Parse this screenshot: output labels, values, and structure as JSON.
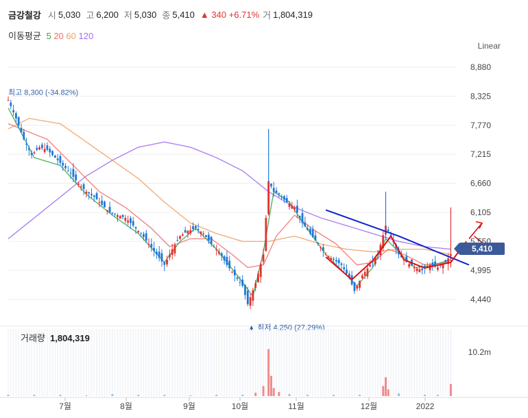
{
  "stock": {
    "name": "금강철강",
    "open_label": "시",
    "open": "5,030",
    "high_label": "고",
    "high": "6,200",
    "low_label": "저",
    "low": "5,030",
    "close_label": "종",
    "close": "5,410",
    "change": "▲ 340 +6.71%",
    "volume_label": "거",
    "volume": "1,804,319"
  },
  "ma_legend": {
    "label": "이동평균",
    "periods": [
      "5",
      "20",
      "60",
      "120"
    ],
    "colors": [
      "#3aa64c",
      "#f07070",
      "#f0a060",
      "#a06cf0"
    ]
  },
  "scale_mode": "Linear",
  "annotations": {
    "max_label": "최고 8,300 (-34.82%)",
    "min_label": "▲ 최저 4,250 (27.29%)",
    "current_price_tag": "5,410"
  },
  "volume_panel": {
    "title": "거래량",
    "value": "1,804,319",
    "axis_label": "10.2m"
  },
  "chart_data": {
    "type": "candlestick",
    "y_ticks": [
      "8,880",
      "8,325",
      "7,770",
      "7,215",
      "6,660",
      "6,105",
      "5,550",
      "4,995",
      "4,440"
    ],
    "ylim": [
      4440,
      8880
    ],
    "x_ticks": [
      "7월",
      "8월",
      "9월",
      "10월",
      "11월",
      "12월",
      "2022"
    ],
    "price_path": [
      [
        0,
        8250
      ],
      [
        3,
        7900
      ],
      [
        6,
        7500
      ],
      [
        9,
        7200
      ],
      [
        12,
        7350
      ],
      [
        15,
        7300
      ],
      [
        18,
        7150
      ],
      [
        21,
        7000
      ],
      [
        24,
        6850
      ],
      [
        27,
        6650
      ],
      [
        30,
        6500
      ],
      [
        33,
        6400
      ],
      [
        36,
        6250
      ],
      [
        39,
        6100
      ],
      [
        42,
        6050
      ],
      [
        45,
        6000
      ],
      [
        48,
        5850
      ],
      [
        51,
        5700
      ],
      [
        54,
        5500
      ],
      [
        57,
        5300
      ],
      [
        60,
        5100
      ],
      [
        63,
        5400
      ],
      [
        66,
        5650
      ],
      [
        69,
        5750
      ],
      [
        72,
        5800
      ],
      [
        75,
        5700
      ],
      [
        78,
        5500
      ],
      [
        81,
        5350
      ],
      [
        84,
        5100
      ],
      [
        87,
        4900
      ],
      [
        90,
        4700
      ],
      [
        92,
        4350
      ],
      [
        95,
        4750
      ],
      [
        98,
        5300
      ],
      [
        100,
        6700
      ],
      [
        102,
        6500
      ],
      [
        104,
        6450
      ],
      [
        107,
        6300
      ],
      [
        110,
        6200
      ],
      [
        113,
        5900
      ],
      [
        116,
        5700
      ],
      [
        119,
        5500
      ],
      [
        122,
        5300
      ],
      [
        125,
        5200
      ],
      [
        128,
        5100
      ],
      [
        131,
        4850
      ],
      [
        133,
        4600
      ],
      [
        136,
        4900
      ],
      [
        139,
        5100
      ],
      [
        142,
        5300
      ],
      [
        145,
        5850
      ],
      [
        147,
        5650
      ],
      [
        150,
        5300
      ],
      [
        153,
        5150
      ],
      [
        156,
        5050
      ],
      [
        159,
        5000
      ],
      [
        162,
        5100
      ],
      [
        165,
        5050
      ],
      [
        168,
        5150
      ],
      [
        170,
        5300
      ]
    ],
    "spikes": [
      {
        "x": 100,
        "high": 7700,
        "low": 6700
      },
      {
        "x": 145,
        "high": 6500,
        "low": 5600
      },
      {
        "x": 170,
        "high": 6200,
        "low": 5050
      }
    ],
    "ma5": [
      [
        0,
        8100
      ],
      [
        10,
        7150
      ],
      [
        20,
        7000
      ],
      [
        30,
        6450
      ],
      [
        40,
        6050
      ],
      [
        50,
        5700
      ],
      [
        60,
        5150
      ],
      [
        66,
        5550
      ],
      [
        72,
        5800
      ],
      [
        80,
        5400
      ],
      [
        88,
        4900
      ],
      [
        94,
        4500
      ],
      [
        98,
        5350
      ],
      [
        102,
        6500
      ],
      [
        108,
        6300
      ],
      [
        114,
        5850
      ],
      [
        122,
        5300
      ],
      [
        130,
        4900
      ],
      [
        134,
        4700
      ],
      [
        140,
        5050
      ],
      [
        145,
        5600
      ],
      [
        150,
        5350
      ],
      [
        156,
        5050
      ],
      [
        162,
        5080
      ],
      [
        170,
        5200
      ]
    ],
    "ma20": [
      [
        0,
        7800
      ],
      [
        15,
        7500
      ],
      [
        25,
        7000
      ],
      [
        35,
        6500
      ],
      [
        45,
        6200
      ],
      [
        55,
        5800
      ],
      [
        62,
        5450
      ],
      [
        70,
        5600
      ],
      [
        78,
        5600
      ],
      [
        86,
        5300
      ],
      [
        92,
        5050
      ],
      [
        98,
        5100
      ],
      [
        103,
        5650
      ],
      [
        110,
        6050
      ],
      [
        118,
        5750
      ],
      [
        126,
        5500
      ],
      [
        134,
        5100
      ],
      [
        140,
        5150
      ],
      [
        146,
        5400
      ],
      [
        152,
        5300
      ],
      [
        160,
        5100
      ],
      [
        170,
        5150
      ]
    ],
    "ma60": [
      [
        0,
        7700
      ],
      [
        8,
        7900
      ],
      [
        20,
        7800
      ],
      [
        30,
        7450
      ],
      [
        40,
        7100
      ],
      [
        50,
        6750
      ],
      [
        60,
        6300
      ],
      [
        70,
        5900
      ],
      [
        80,
        5700
      ],
      [
        90,
        5550
      ],
      [
        100,
        5550
      ],
      [
        110,
        5650
      ],
      [
        120,
        5500
      ],
      [
        130,
        5400
      ],
      [
        140,
        5350
      ],
      [
        150,
        5400
      ],
      [
        160,
        5400
      ],
      [
        170,
        5300
      ]
    ],
    "ma120": [
      [
        0,
        5600
      ],
      [
        10,
        6000
      ],
      [
        20,
        6400
      ],
      [
        30,
        6800
      ],
      [
        40,
        7100
      ],
      [
        50,
        7350
      ],
      [
        60,
        7450
      ],
      [
        70,
        7350
      ],
      [
        80,
        7150
      ],
      [
        90,
        6900
      ],
      [
        100,
        6500
      ],
      [
        110,
        6200
      ],
      [
        120,
        6000
      ],
      [
        130,
        5850
      ],
      [
        140,
        5700
      ],
      [
        150,
        5550
      ],
      [
        160,
        5450
      ],
      [
        170,
        5400
      ]
    ],
    "hand_drawn_lines": {
      "blue_trendline": [
        [
          122,
          6150
        ],
        [
          150,
          5650
        ],
        [
          177,
          5100
        ]
      ],
      "red_curve_1": [
        [
          122,
          5250
        ],
        [
          132,
          4820
        ],
        [
          140,
          5180
        ],
        [
          147,
          5650
        ],
        [
          152,
          5200
        ]
      ],
      "red_curve_2": [
        [
          152,
          5200
        ],
        [
          160,
          5040
        ],
        [
          170,
          5150
        ],
        [
          176,
          5550
        ]
      ],
      "red_arrow_to": [
        182,
        5900
      ]
    },
    "volume_bars": [
      [
        0,
        0.02
      ],
      [
        10,
        0.02
      ],
      [
        20,
        0.02
      ],
      [
        30,
        0.01
      ],
      [
        40,
        0.03
      ],
      [
        50,
        0.02
      ],
      [
        60,
        0.02
      ],
      [
        70,
        0.01
      ],
      [
        80,
        0.02
      ],
      [
        90,
        0.02
      ],
      [
        95,
        0.05
      ],
      [
        98,
        0.15
      ],
      [
        100,
        0.7
      ],
      [
        101,
        0.3
      ],
      [
        102,
        0.12
      ],
      [
        104,
        0.06
      ],
      [
        108,
        0.03
      ],
      [
        115,
        0.02
      ],
      [
        125,
        0.02
      ],
      [
        135,
        0.02
      ],
      [
        144,
        0.15
      ],
      [
        145,
        0.28
      ],
      [
        146,
        0.1
      ],
      [
        150,
        0.04
      ],
      [
        160,
        0.02
      ],
      [
        165,
        0.02
      ],
      [
        170,
        0.18
      ]
    ]
  }
}
